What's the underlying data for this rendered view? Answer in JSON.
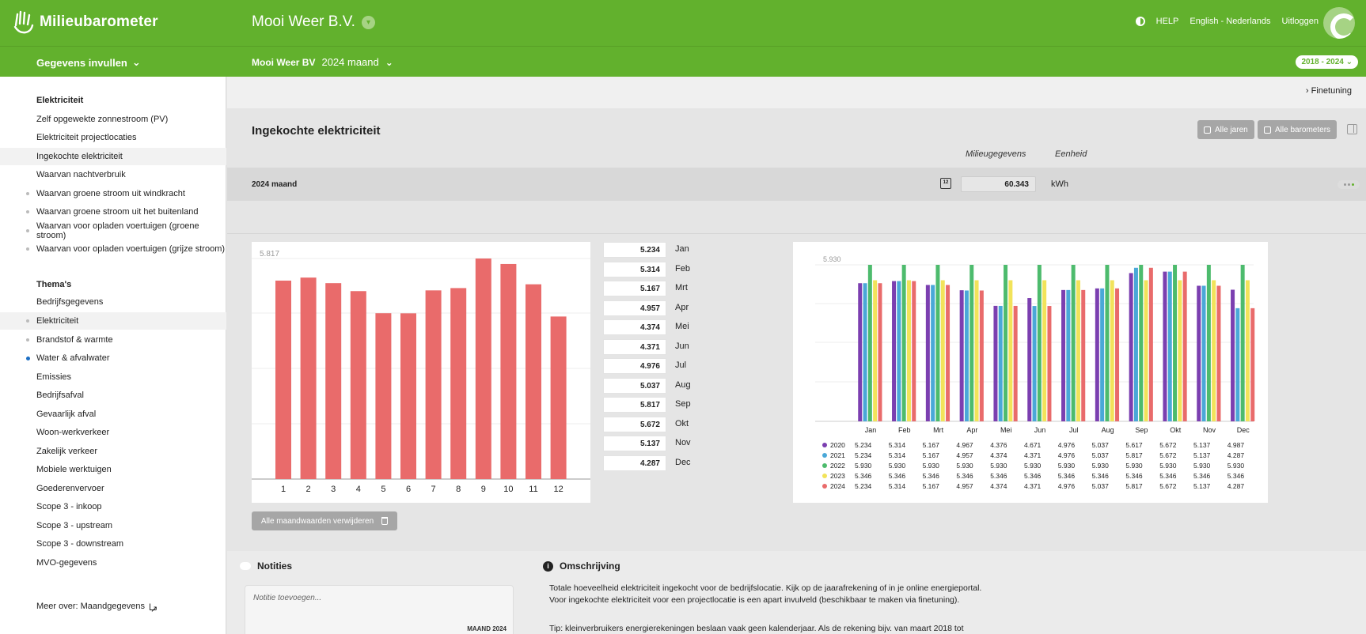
{
  "app": {
    "name": "Milieubarometer",
    "company": "Mooi Weer B.V.",
    "top_links": {
      "help": "HELP",
      "language": "English - Nederlands",
      "logout": "Uitloggen"
    }
  },
  "subbar": {
    "menu_label": "Gegevens invullen",
    "location": "Mooi Weer BV",
    "period": "2024 maand",
    "year_range": "2018 - 2024"
  },
  "sidebar": {
    "heading_1": "Elektriciteit",
    "elec_items": [
      {
        "label": "Zelf opgewekte zonnestroom (PV)"
      },
      {
        "label": "Elektriciteit projectlocaties"
      },
      {
        "label": "Ingekochte elektriciteit"
      },
      {
        "label": "Waarvan nachtverbruik"
      },
      {
        "label": "Waarvan groene stroom uit windkracht"
      },
      {
        "label": "Waarvan groene stroom uit het buitenland"
      },
      {
        "label": "Waarvan voor opladen voertuigen (groene stroom)"
      },
      {
        "label": "Waarvan voor opladen voertuigen (grijze stroom)"
      }
    ],
    "heading_2": "Thema's",
    "theme_items": [
      {
        "label": "Bedrijfsgegevens"
      },
      {
        "label": "Elektriciteit"
      },
      {
        "label": "Brandstof & warmte"
      },
      {
        "label": "Water & afvalwater"
      },
      {
        "label": "Emissies"
      },
      {
        "label": "Bedrijfsafval"
      },
      {
        "label": "Gevaarlijk afval"
      },
      {
        "label": "Woon-werkverkeer"
      },
      {
        "label": "Zakelijk verkeer"
      },
      {
        "label": "Mobiele werktuigen"
      },
      {
        "label": "Goederenvervoer"
      },
      {
        "label": "Scope 3 - inkoop"
      },
      {
        "label": "Scope 3 - upstream"
      },
      {
        "label": "Scope 3 - downstream"
      },
      {
        "label": "MVO-gegevens"
      }
    ],
    "footer_link": "Meer over: Maandgegevens"
  },
  "main": {
    "finetuning": "Finetuning",
    "title": "Ingekochte elektriciteit",
    "btn_all_years": "Alle jaren",
    "btn_all_barometers": "Alle barometers",
    "col_milieugegevens": "Milieugegevens",
    "col_eenheid": "Eenheid",
    "row_label": "2024 maand",
    "calendar_num": "12",
    "value": "60.343",
    "unit": "kWh",
    "delete_btn": "Alle maandwaarden verwijderen",
    "months": [
      {
        "value": "5.234",
        "name": "Jan"
      },
      {
        "value": "5.314",
        "name": "Feb"
      },
      {
        "value": "5.167",
        "name": "Mrt"
      },
      {
        "value": "4.957",
        "name": "Apr"
      },
      {
        "value": "4.374",
        "name": "Mei"
      },
      {
        "value": "4.371",
        "name": "Jun"
      },
      {
        "value": "4.976",
        "name": "Jul"
      },
      {
        "value": "5.037",
        "name": "Aug"
      },
      {
        "value": "5.817",
        "name": "Sep"
      },
      {
        "value": "5.672",
        "name": "Okt"
      },
      {
        "value": "5.137",
        "name": "Nov"
      },
      {
        "value": "4.287",
        "name": "Dec"
      }
    ]
  },
  "bottom": {
    "notes_title": "Notities",
    "notes_placeholder": "Notitie toevoegen...",
    "notes_stamp": "MAAND 2024",
    "desc_title": "Omschrijving",
    "desc_text": "Totale hoeveelheid elektriciteit ingekocht voor de bedrijfslocatie. Kijk op de jaarafrekening of in je online energieportal. Voor ingekochte elektriciteit voor een projectlocatie is een apart invulveld (beschikbaar te maken via finetuning).",
    "desc_tip": "Tip: kleinverbruikers energierekeningen beslaan vaak geen kalenderjaar. Als de rekening bijv. van maart 2018 tot"
  },
  "colors": {
    "brand_green": "#62b12d",
    "bar_red": "#e96b6b",
    "series": {
      "2020": "#7b3fb0",
      "2021": "#4aa8d8",
      "2022": "#4dbb6d",
      "2023": "#f2e35a",
      "2024": "#e96b6b"
    }
  },
  "chart_data": [
    {
      "type": "bar",
      "categories": [
        "1",
        "2",
        "3",
        "4",
        "5",
        "6",
        "7",
        "8",
        "9",
        "10",
        "11",
        "12"
      ],
      "values": [
        5234,
        5314,
        5167,
        4957,
        4374,
        4371,
        4976,
        5037,
        5817,
        5672,
        5137,
        4287
      ],
      "ymax_label": "5.817",
      "ylim": [
        0,
        5817
      ]
    },
    {
      "type": "bar",
      "categories": [
        "Jan",
        "Feb",
        "Mrt",
        "Apr",
        "Mei",
        "Jun",
        "Jul",
        "Aug",
        "Sep",
        "Okt",
        "Nov",
        "Dec"
      ],
      "ymax_label": "5.930",
      "ylim": [
        0,
        5930
      ],
      "series": [
        {
          "name": "2020",
          "values": [
            5234,
            5314,
            5167,
            4967,
            4376,
            4671,
            4976,
            5037,
            5617,
            5672,
            5137,
            4987
          ],
          "labels": [
            "5.234",
            "5.314",
            "5.167",
            "4.967",
            "4.376",
            "4.671",
            "4.976",
            "5.037",
            "5.617",
            "5.672",
            "5.137",
            "4.987"
          ]
        },
        {
          "name": "2021",
          "values": [
            5234,
            5314,
            5167,
            4957,
            4374,
            4371,
            4976,
            5037,
            5817,
            5672,
            5137,
            4287
          ],
          "labels": [
            "5.234",
            "5.314",
            "5.167",
            "4.957",
            "4.374",
            "4.371",
            "4.976",
            "5.037",
            "5.817",
            "5.672",
            "5.137",
            "4.287"
          ]
        },
        {
          "name": "2022",
          "values": [
            5930,
            5930,
            5930,
            5930,
            5930,
            5930,
            5930,
            5930,
            5930,
            5930,
            5930,
            5930
          ],
          "labels": [
            "5.930",
            "5.930",
            "5.930",
            "5.930",
            "5.930",
            "5.930",
            "5.930",
            "5.930",
            "5.930",
            "5.930",
            "5.930",
            "5.930"
          ]
        },
        {
          "name": "2023",
          "values": [
            5346,
            5346,
            5346,
            5346,
            5346,
            5346,
            5346,
            5346,
            5346,
            5346,
            5346,
            5346
          ],
          "labels": [
            "5.346",
            "5.346",
            "5.346",
            "5.346",
            "5.346",
            "5.346",
            "5.346",
            "5.346",
            "5.346",
            "5.346",
            "5.346",
            "5.346"
          ]
        },
        {
          "name": "2024",
          "values": [
            5234,
            5314,
            5167,
            4957,
            4374,
            4371,
            4976,
            5037,
            5817,
            5672,
            5137,
            4287
          ],
          "labels": [
            "5.234",
            "5.314",
            "5.167",
            "4.957",
            "4.374",
            "4.371",
            "4.976",
            "5.037",
            "5.817",
            "5.672",
            "5.137",
            "4.287"
          ]
        }
      ]
    }
  ]
}
